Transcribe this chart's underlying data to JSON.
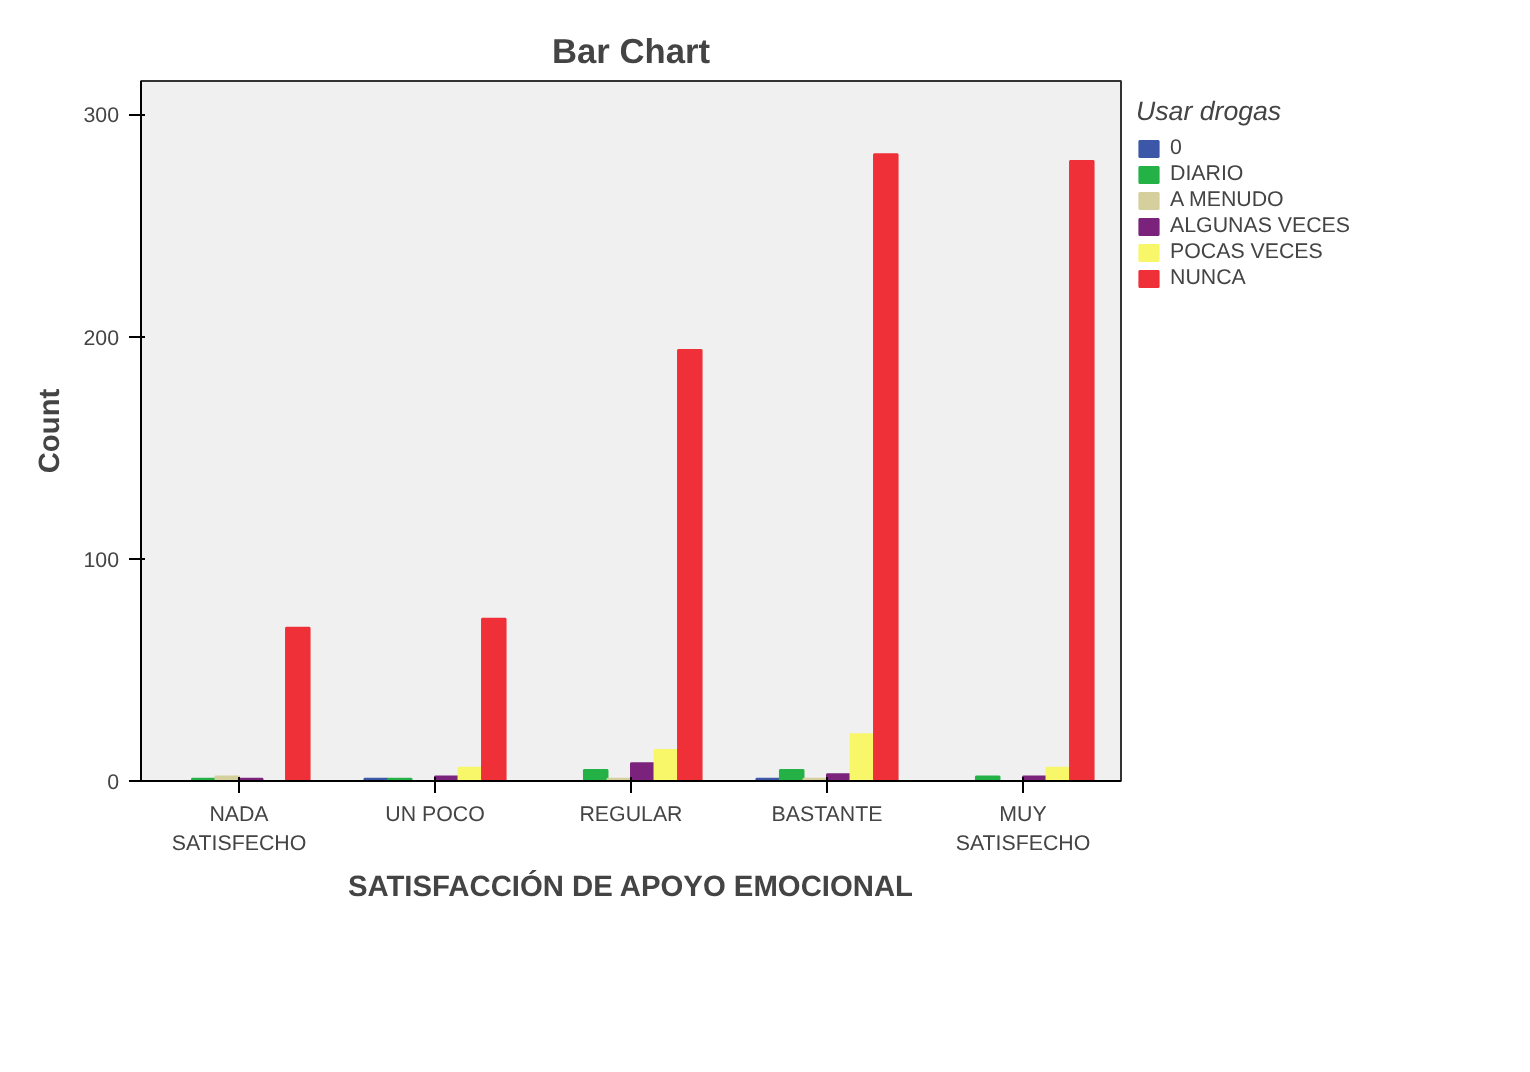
{
  "chart_data": {
    "type": "bar",
    "title": "Bar Chart",
    "xlabel": "SATISFACCIÓN DE APOYO EMOCIONAL",
    "ylabel": "Count",
    "legend_title": "Usar drogas",
    "categories": [
      "NADA\nSATISFECHO",
      "UN POCO",
      "REGULAR",
      "BASTANTE",
      "MUY\nSATISFECHO"
    ],
    "series": [
      {
        "name": "0",
        "color": "#3c57a8",
        "values": [
          0,
          1,
          0,
          1,
          0
        ]
      },
      {
        "name": "DIARIO",
        "color": "#24b246",
        "values": [
          1,
          1,
          5,
          5,
          2
        ]
      },
      {
        "name": "A MENUDO",
        "color": "#d4cf9c",
        "values": [
          2,
          0,
          1,
          1,
          0
        ]
      },
      {
        "name": "ALGUNAS VECES",
        "color": "#7b237c",
        "values": [
          1,
          2,
          8,
          3,
          2
        ]
      },
      {
        "name": "POCAS VECES",
        "color": "#f8f76a",
        "values": [
          0,
          6,
          14,
          21,
          6
        ]
      },
      {
        "name": "NUNCA",
        "color": "#ef3038",
        "values": [
          69,
          73,
          194,
          282,
          279
        ]
      }
    ],
    "ylim": [
      0,
      315
    ],
    "yticks": [
      0,
      100,
      200,
      300
    ],
    "grid": false,
    "legend": "right"
  }
}
